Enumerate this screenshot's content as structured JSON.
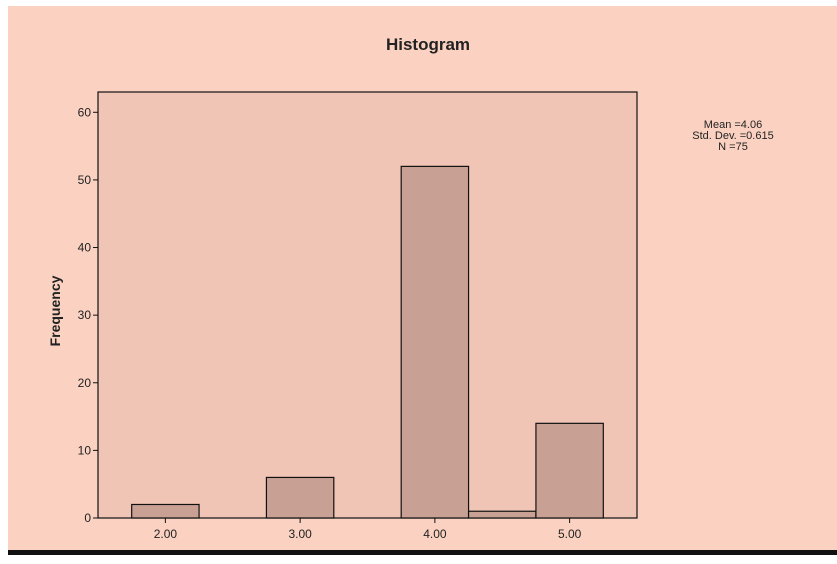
{
  "colors": {
    "canvas_bg": "#fbd2c2",
    "plot_bg": "#f0c5b5",
    "bar_fill": "#c9a194",
    "bar_stroke": "#111111",
    "axis": "#111111"
  },
  "chart_data": {
    "type": "bar",
    "title": "Histogram",
    "xlabel": "",
    "ylabel": "Frequency",
    "ylim": [
      0,
      63
    ],
    "xlim": [
      1.5,
      5.5
    ],
    "yticks": [
      0,
      10,
      20,
      30,
      40,
      50,
      60
    ],
    "xticks": [
      2.0,
      3.0,
      4.0,
      5.0
    ],
    "xtick_labels": [
      "2.00",
      "3.00",
      "4.00",
      "5.00"
    ],
    "bin_width": 0.5,
    "bars": [
      {
        "center": 2.0,
        "value": 2
      },
      {
        "center": 3.0,
        "value": 6
      },
      {
        "center": 4.0,
        "value": 52
      },
      {
        "center": 4.5,
        "value": 1
      },
      {
        "center": 5.0,
        "value": 14
      }
    ],
    "stats": [
      "Mean =4.06",
      "Std. Dev. =0.615",
      "N =75"
    ],
    "grid": false
  }
}
